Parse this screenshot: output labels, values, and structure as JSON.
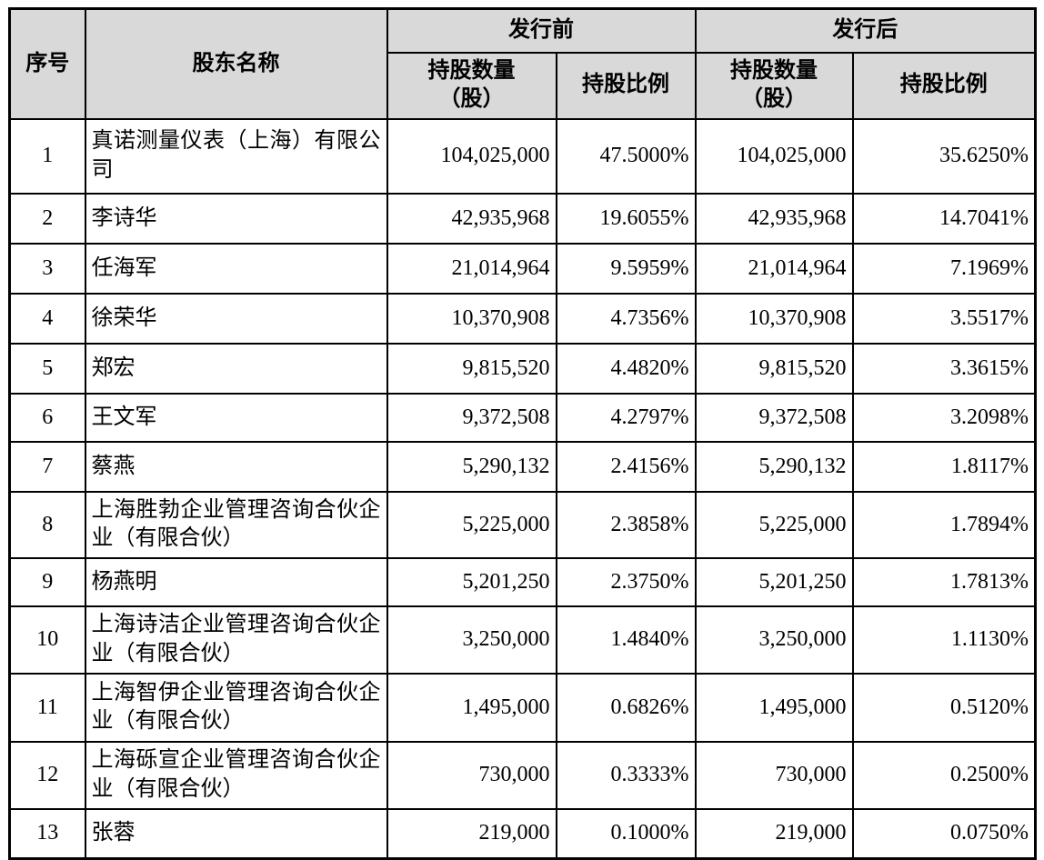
{
  "table": {
    "header": {
      "col_index": "序号",
      "col_shareholder": "股东名称",
      "group_pre": "发行前",
      "group_post": "发行后",
      "shares_line1": "持股数量",
      "shares_line2": "（股）",
      "ratio_label": "持股比例"
    },
    "rows": [
      {
        "no": "1",
        "name": "真诺测量仪表（上海）有限公司",
        "pre_shares": "104,025,000",
        "pre_ratio": "47.5000%",
        "post_shares": "104,025,000",
        "post_ratio": "35.6250%"
      },
      {
        "no": "2",
        "name": "李诗华",
        "pre_shares": "42,935,968",
        "pre_ratio": "19.6055%",
        "post_shares": "42,935,968",
        "post_ratio": "14.7041%"
      },
      {
        "no": "3",
        "name": "任海军",
        "pre_shares": "21,014,964",
        "pre_ratio": "9.5959%",
        "post_shares": "21,014,964",
        "post_ratio": "7.1969%"
      },
      {
        "no": "4",
        "name": "徐荣华",
        "pre_shares": "10,370,908",
        "pre_ratio": "4.7356%",
        "post_shares": "10,370,908",
        "post_ratio": "3.5517%"
      },
      {
        "no": "5",
        "name": "郑宏",
        "pre_shares": "9,815,520",
        "pre_ratio": "4.4820%",
        "post_shares": "9,815,520",
        "post_ratio": "3.3615%"
      },
      {
        "no": "6",
        "name": "王文军",
        "pre_shares": "9,372,508",
        "pre_ratio": "4.2797%",
        "post_shares": "9,372,508",
        "post_ratio": "3.2098%"
      },
      {
        "no": "7",
        "name": "蔡燕",
        "pre_shares": "5,290,132",
        "pre_ratio": "2.4156%",
        "post_shares": "5,290,132",
        "post_ratio": "1.8117%"
      },
      {
        "no": "8",
        "name": "上海胜勃企业管理咨询合伙企业（有限合伙）",
        "pre_shares": "5,225,000",
        "pre_ratio": "2.3858%",
        "post_shares": "5,225,000",
        "post_ratio": "1.7894%"
      },
      {
        "no": "9",
        "name": "杨燕明",
        "pre_shares": "5,201,250",
        "pre_ratio": "2.3750%",
        "post_shares": "5,201,250",
        "post_ratio": "1.7813%"
      },
      {
        "no": "10",
        "name": "上海诗洁企业管理咨询合伙企业（有限合伙）",
        "pre_shares": "3,250,000",
        "pre_ratio": "1.4840%",
        "post_shares": "3,250,000",
        "post_ratio": "1.1130%"
      },
      {
        "no": "11",
        "name": "上海智伊企业管理咨询合伙企业（有限合伙）",
        "pre_shares": "1,495,000",
        "pre_ratio": "0.6826%",
        "post_shares": "1,495,000",
        "post_ratio": "0.5120%"
      },
      {
        "no": "12",
        "name": "上海砾宣企业管理咨询合伙企业（有限合伙）",
        "pre_shares": "730,000",
        "pre_ratio": "0.3333%",
        "post_shares": "730,000",
        "post_ratio": "0.2500%"
      },
      {
        "no": "13",
        "name": "张蓉",
        "pre_shares": "219,000",
        "pre_ratio": "0.1000%",
        "post_shares": "219,000",
        "post_ratio": "0.0750%"
      }
    ]
  }
}
